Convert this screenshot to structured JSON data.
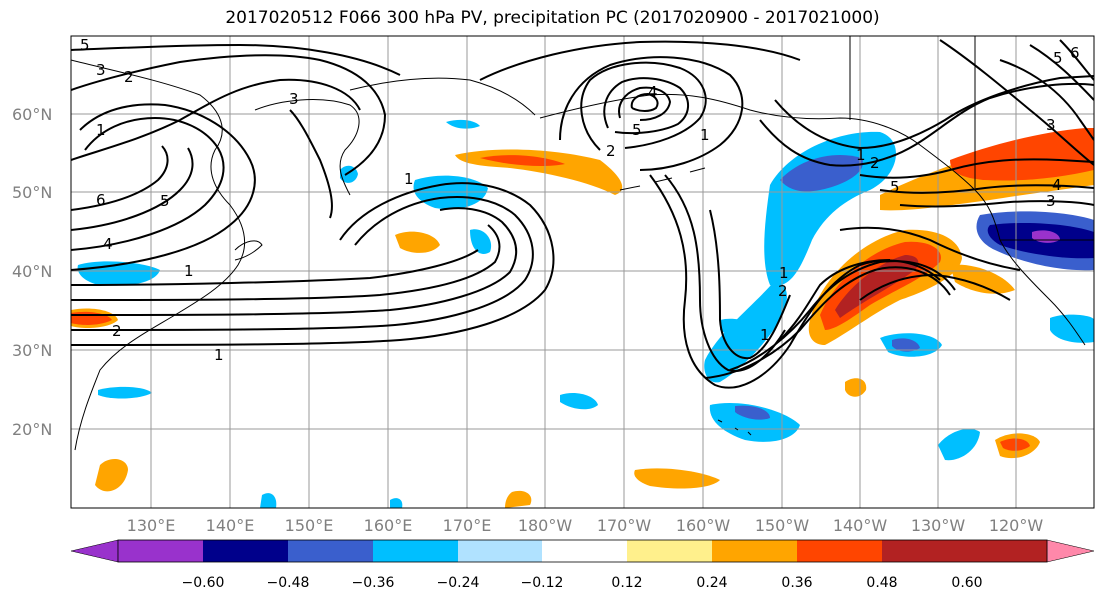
{
  "title": "2017020512 F066 300 hPa PV, precipitation PC (2017020900 - 2017021000)",
  "map": {
    "lon_labels": [
      "130°E",
      "140°E",
      "150°E",
      "160°E",
      "170°E",
      "180°W",
      "170°W",
      "160°W",
      "150°W",
      "140°W",
      "130°W",
      "120°W"
    ],
    "lat_labels": [
      "60°N",
      "50°N",
      "40°N",
      "30°N",
      "20°N"
    ],
    "contour_labels": [
      "5",
      "3",
      "2",
      "1",
      "6",
      "5",
      "4",
      "1",
      "2",
      "3",
      "1",
      "1",
      "4",
      "5",
      "2",
      "1",
      "5",
      "1",
      "2",
      "5",
      "4",
      "3",
      "6",
      "3",
      "1",
      "2",
      "1"
    ]
  },
  "colorbar": {
    "colors": [
      "#9932cc",
      "#00008b",
      "#3a5fcd",
      "#00bfff",
      "#b0e2ff",
      "#ffffff",
      "#fff08c",
      "#ffa500",
      "#ff4500",
      "#b22222",
      "#ff88aa"
    ],
    "ticks": [
      "−0.60",
      "−0.48",
      "−0.36",
      "−0.24",
      "−0.12",
      "0.12",
      "0.24",
      "0.36",
      "0.48",
      "0.60"
    ]
  }
}
